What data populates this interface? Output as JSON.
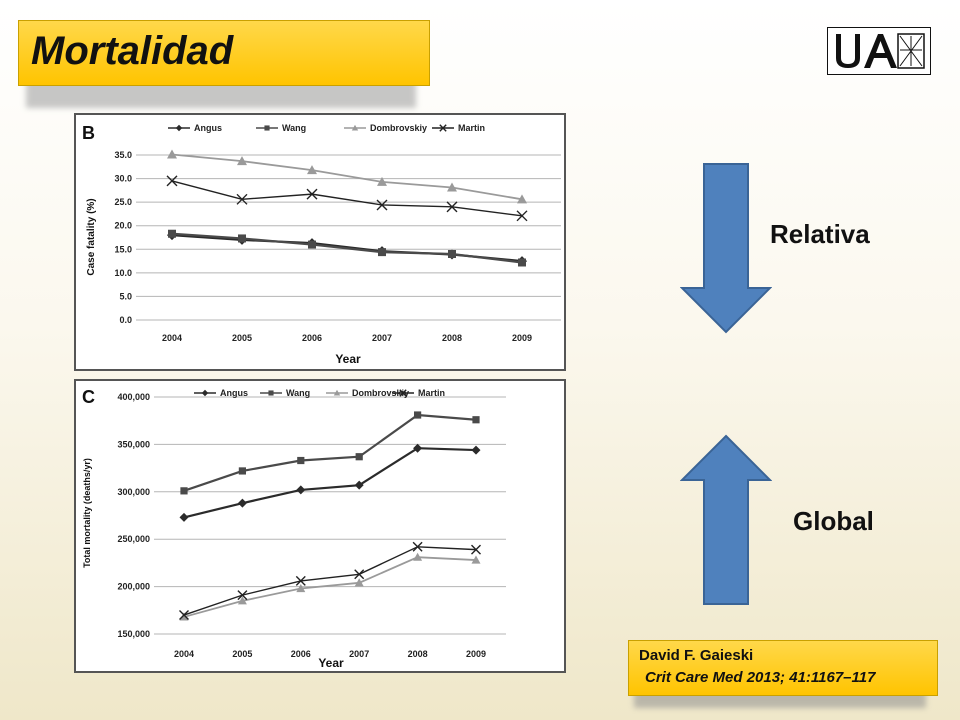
{
  "slide": {
    "title": "Mortalidad",
    "logo_text": "UAM",
    "label_relativa": "Relativa",
    "label_global": "Global",
    "citation_author": "David F. Gaieski",
    "citation_journal": "Crit Care Med 2013; 41:1167–117",
    "accent_color": "#ffc400",
    "arrow_color": "#4f81bd"
  },
  "chart_data": [
    {
      "type": "line",
      "panel_label": "B",
      "categories": [
        "2004",
        "2005",
        "2006",
        "2007",
        "2008",
        "2009"
      ],
      "ylabel": "Case fatality (%)",
      "xlabel": "Year",
      "ylim": [
        0,
        35
      ],
      "yticks": [
        "0.0",
        "5.0",
        "10.0",
        "15.0",
        "20.0",
        "25.0",
        "30.0",
        "35.0"
      ],
      "grid": true,
      "legend_position": "top",
      "series": [
        {
          "name": "Angus",
          "marker": "diamond",
          "values": [
            18.0,
            17.0,
            16.3,
            14.6,
            13.9,
            12.5
          ]
        },
        {
          "name": "Wang",
          "marker": "square",
          "values": [
            18.3,
            17.3,
            16.0,
            14.4,
            14.0,
            12.2
          ]
        },
        {
          "name": "Dombrovskiy",
          "marker": "triangle",
          "values": [
            35.1,
            33.7,
            31.8,
            29.3,
            28.1,
            25.6
          ]
        },
        {
          "name": "Martin",
          "marker": "x",
          "values": [
            29.5,
            25.6,
            26.7,
            24.4,
            24.0,
            22.1
          ]
        }
      ]
    },
    {
      "type": "line",
      "panel_label": "C",
      "categories": [
        "2004",
        "2005",
        "2006",
        "2007",
        "2008",
        "2009"
      ],
      "ylabel": "Total mortality (deaths/yr)",
      "xlabel": "Year",
      "ylim": [
        150000,
        400000
      ],
      "yticks": [
        "150,000",
        "200,000",
        "250,000",
        "300,000",
        "350,000",
        "400,000"
      ],
      "grid": true,
      "legend_position": "top",
      "series": [
        {
          "name": "Angus",
          "marker": "diamond",
          "values": [
            273000,
            288000,
            302000,
            307000,
            346000,
            344000
          ]
        },
        {
          "name": "Wang",
          "marker": "square",
          "values": [
            301000,
            322000,
            333000,
            337000,
            381000,
            376000
          ]
        },
        {
          "name": "Dombrovskiy",
          "marker": "triangle",
          "values": [
            168000,
            185000,
            198000,
            204000,
            231000,
            228000
          ]
        },
        {
          "name": "Martin",
          "marker": "x",
          "values": [
            170000,
            191000,
            206000,
            213000,
            242000,
            239000
          ]
        }
      ]
    }
  ]
}
